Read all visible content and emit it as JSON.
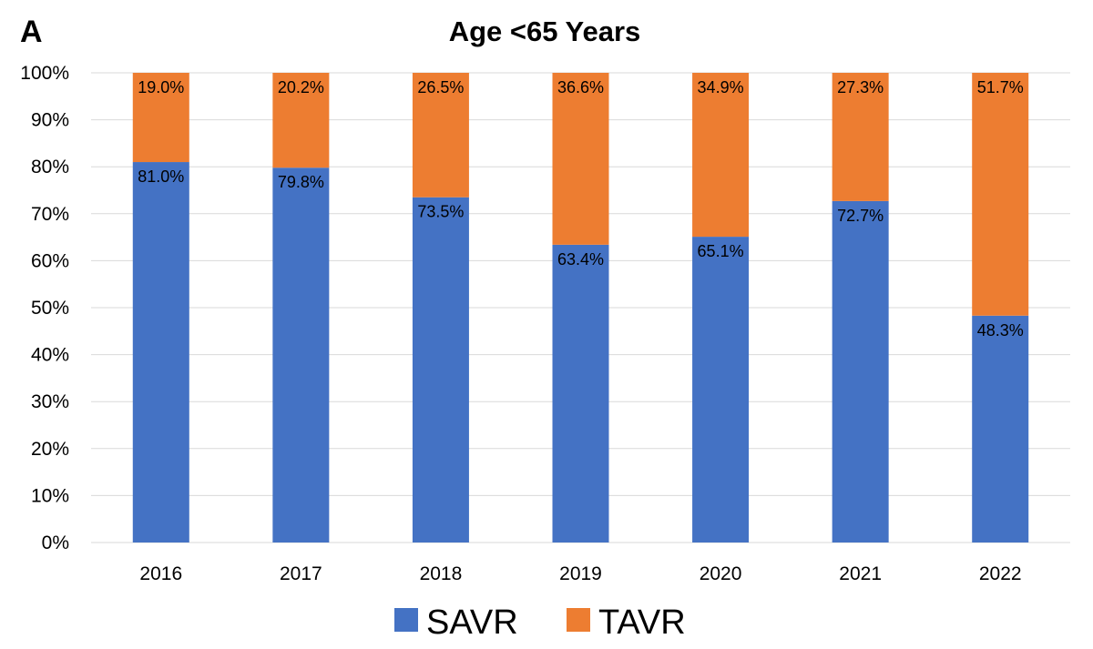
{
  "panel_label": "A",
  "chart_data": {
    "type": "bar",
    "stacked": true,
    "title": "Age <65 Years",
    "categories": [
      "2016",
      "2017",
      "2018",
      "2019",
      "2020",
      "2021",
      "2022"
    ],
    "series": [
      {
        "name": "SAVR",
        "color": "#4472C4",
        "values": [
          81.0,
          79.8,
          73.5,
          63.4,
          65.1,
          72.7,
          48.3
        ],
        "labels": [
          "81.0%",
          "79.8%",
          "73.5%",
          "63.4%",
          "65.1%",
          "72.7%",
          "48.3%"
        ]
      },
      {
        "name": "TAVR",
        "color": "#ED7D31",
        "values": [
          19.0,
          20.2,
          26.5,
          36.6,
          34.9,
          27.3,
          51.7
        ],
        "labels": [
          "19.0%",
          "20.2%",
          "26.5%",
          "36.6%",
          "34.9%",
          "27.3%",
          "51.7%"
        ]
      }
    ],
    "y_ticks": [
      "0%",
      "10%",
      "20%",
      "30%",
      "40%",
      "50%",
      "60%",
      "70%",
      "80%",
      "90%",
      "100%"
    ],
    "ylim": [
      0,
      100
    ],
    "xlabel": "",
    "ylabel": "",
    "grid": true,
    "legend_position": "bottom"
  }
}
